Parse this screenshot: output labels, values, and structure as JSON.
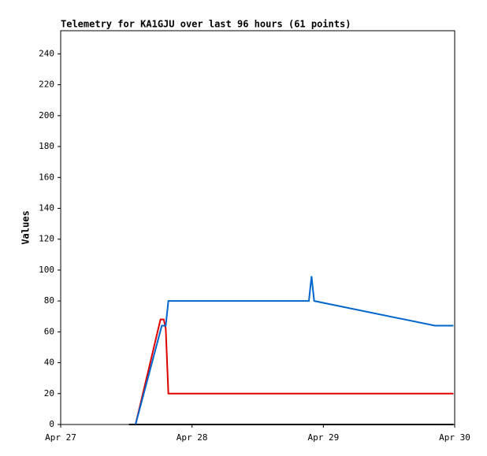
{
  "chart_data": {
    "type": "line",
    "title": "Telemetry for KA1GJU over last 96 hours (61 points)",
    "y_label": "Values",
    "xlim": [
      0,
      3
    ],
    "xticks": [
      {
        "value": 0,
        "label": "Apr 27"
      },
      {
        "value": 1,
        "label": "Apr 28"
      },
      {
        "value": 2,
        "label": "Apr 29"
      },
      {
        "value": 3,
        "label": "Apr 30"
      }
    ],
    "ylim": [
      0,
      255
    ],
    "yticks": [
      0,
      20,
      40,
      60,
      80,
      100,
      120,
      140,
      160,
      180,
      200,
      220,
      240
    ],
    "series": [
      {
        "color": "#000000",
        "x": [
          0.52,
          2.99
        ],
        "values": [
          0,
          0
        ]
      },
      {
        "color": "#e00000",
        "x": [
          0.57,
          0.76,
          0.785,
          0.8,
          0.82,
          2.99
        ],
        "values": [
          0,
          68,
          68,
          62,
          20,
          20
        ]
      },
      {
        "color": "#0066cc",
        "x": [
          0.57,
          0.77,
          0.8,
          0.82,
          1.89,
          1.91,
          1.93,
          2.85,
          2.99
        ],
        "values": [
          0,
          64,
          64,
          80,
          80,
          96,
          80,
          64,
          64
        ]
      }
    ]
  }
}
